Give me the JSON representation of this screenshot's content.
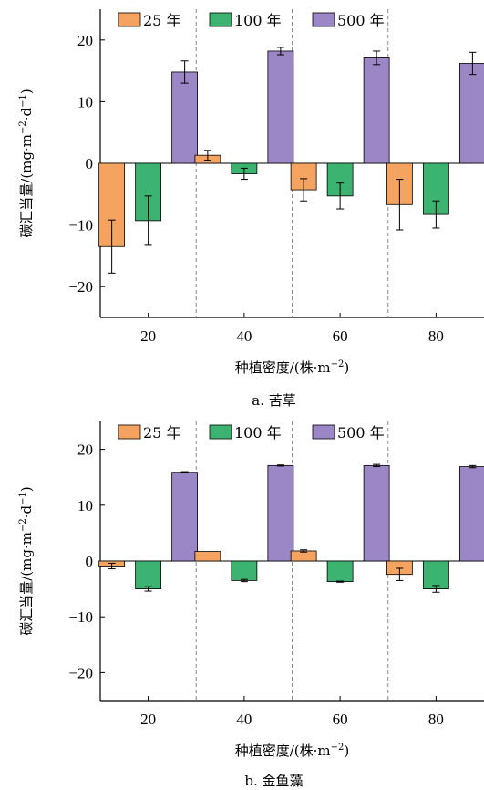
{
  "colors": {
    "s25": "#f4a460",
    "s100": "#3cb371",
    "s500": "#9b86c6"
  },
  "chart_data": [
    {
      "type": "bar",
      "caption": "a. 苦草",
      "xlabel": "种植密度/(株·m",
      "xlabel_sup": "−2",
      "xlabel_end": ")",
      "ylabel_main": "碳汇当量/(mg·m",
      "ylabel_sup1": "−2",
      "ylabel_mid": "·d",
      "ylabel_sup2": "−1",
      "ylabel_end": ")",
      "ylim": [
        -25,
        25
      ],
      "yticks": [
        -20,
        -10,
        0,
        10,
        20
      ],
      "ytick_labels": [
        "−20",
        "−10",
        "0",
        "10",
        "20"
      ],
      "categories": [
        "20",
        "40",
        "60",
        "80"
      ],
      "legend": "top-left",
      "series": [
        {
          "name": "25 年",
          "values": [
            -13.5,
            1.3,
            -4.3,
            -6.7
          ],
          "err": [
            4.3,
            0.8,
            1.8,
            4.1
          ]
        },
        {
          "name": "100 年",
          "values": [
            -9.3,
            -1.7,
            -5.3,
            -8.3
          ],
          "err": [
            4.0,
            0.9,
            2.1,
            2.2
          ]
        },
        {
          "name": "500 年",
          "values": [
            14.8,
            18.2,
            17.1,
            16.2
          ],
          "err": [
            1.8,
            0.6,
            1.1,
            1.8
          ]
        }
      ]
    },
    {
      "type": "bar",
      "caption": "b. 金鱼藻",
      "xlabel": "种植密度/(株·m",
      "xlabel_sup": "−2",
      "xlabel_end": ")",
      "ylabel_main": "碳汇当量/(mg·m",
      "ylabel_sup1": "−2",
      "ylabel_mid": "·d",
      "ylabel_sup2": "−1",
      "ylabel_end": ")",
      "ylim": [
        -25,
        25
      ],
      "yticks": [
        -20,
        -10,
        0,
        10,
        20
      ],
      "ytick_labels": [
        "−20",
        "−10",
        "0",
        "10",
        "20"
      ],
      "categories": [
        "20",
        "40",
        "60",
        "80"
      ],
      "legend": "top-left",
      "series": [
        {
          "name": "25 年",
          "values": [
            -0.9,
            1.7,
            1.8,
            -2.4
          ],
          "err": [
            0.5,
            0,
            0.2,
            1.1
          ]
        },
        {
          "name": "100 年",
          "values": [
            -5.0,
            -3.5,
            -3.7,
            -5.0
          ],
          "err": [
            0.4,
            0.2,
            0.1,
            0.6
          ]
        },
        {
          "name": "500 年",
          "values": [
            15.9,
            17.1,
            17.1,
            16.9
          ],
          "err": [
            0.1,
            0.1,
            0.2,
            0.2
          ]
        }
      ]
    }
  ]
}
